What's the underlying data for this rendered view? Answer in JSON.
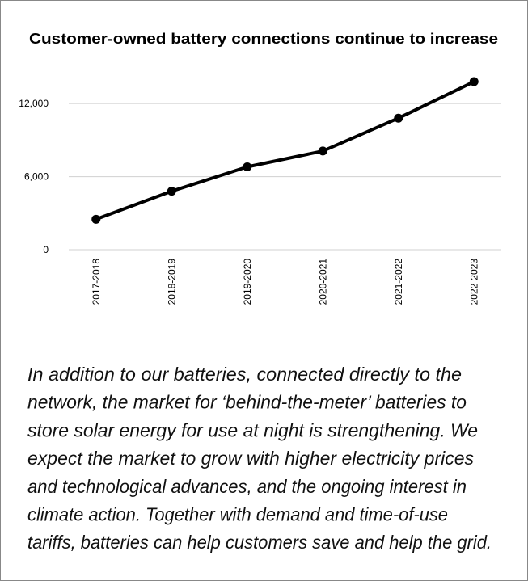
{
  "chart_data": {
    "type": "line",
    "title": "Customer-owned battery connections continue to increase",
    "categories": [
      "2017-2018",
      "2018-2019",
      "2019-2020",
      "2020-2021",
      "2021-2022",
      "2022-2023"
    ],
    "values": [
      2500,
      4800,
      6800,
      8100,
      10800,
      13800
    ],
    "color": "#000000",
    "ylim": [
      0,
      14000
    ],
    "yticks": [
      0,
      {
        "value": 6000,
        "label": "6,000"
      },
      {
        "value": 12000,
        "label": "12,000"
      }
    ],
    "grid": true
  },
  "paragraph": [
    "In addition to our batteries, connected directly to the",
    "network, the market for ‘behind-the-meter’ batteries to",
    "store solar energy for use at night is strengthening. We",
    "expect the market to grow with higher electricity prices",
    "and technological advances, and the ongoing interest in",
    "climate action. Together with demand and time-of-use",
    "tariffs, batteries can help customers save and help the grid."
  ]
}
